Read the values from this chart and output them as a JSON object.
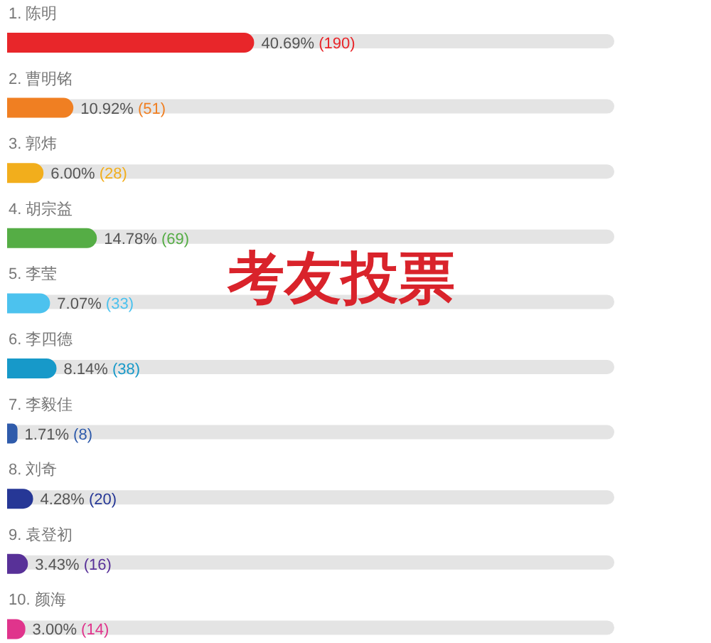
{
  "chart_data": {
    "type": "bar",
    "orientation": "horizontal",
    "title": "考友投票",
    "categories": [
      "1. 陈明",
      "2. 曹明铭",
      "3. 郭炜",
      "4. 胡宗益",
      "5. 李莹",
      "6. 李四德",
      "7. 李毅佳",
      "8. 刘奇",
      "9. 袁登初",
      "10. 颜海"
    ],
    "values": [
      40.69,
      10.92,
      6.0,
      14.78,
      7.07,
      8.14,
      1.71,
      4.28,
      3.43,
      3.0
    ],
    "colors": [
      "#e8262a",
      "#f07f22",
      "#f2ae1c",
      "#55ad45",
      "#4cc2ee",
      "#1799c9",
      "#2f5bab",
      "#263796",
      "#583198",
      "#e0348c"
    ],
    "value_labels": [
      "40.69% (190)",
      "10.92% (51)",
      "6.00% (28)",
      "14.78% (69)",
      "7.07% (33)",
      "8.14% (38)",
      "1.71% (8)",
      "4.28% (20)",
      "3.43% (16)",
      "3.00% (14)"
    ],
    "tick_labels": "y"
  }
}
